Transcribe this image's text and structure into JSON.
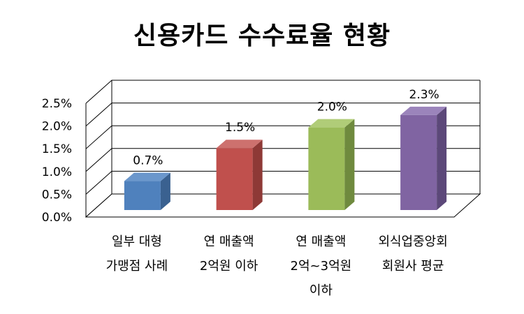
{
  "chart_data": {
    "type": "bar",
    "title": "신용카드 수수료율 현황",
    "categories": [
      [
        "일부 대형",
        "가맹점 사례"
      ],
      [
        "연 매출액",
        "2억원 이하"
      ],
      [
        "연 매출액",
        "2억~3억원",
        "이하"
      ],
      [
        "외식업중앙회",
        "회원사 평균"
      ]
    ],
    "values": [
      0.7,
      1.5,
      2.0,
      2.3
    ],
    "data_labels": [
      "0.7%",
      "1.5%",
      "2.0%",
      "2.3%"
    ],
    "yticks": [
      "0.0%",
      "0.5%",
      "1.0%",
      "1.5%",
      "2.0%",
      "2.5%"
    ],
    "ylim": [
      0,
      2.5
    ],
    "grid": true,
    "legend": "none",
    "colors": {
      "bars": [
        "#4F81BD",
        "#C0504D",
        "#9BBB59",
        "#8064A2"
      ],
      "bar_tops": [
        "#6B97CC",
        "#CD716E",
        "#B0CC78",
        "#9B84BB"
      ],
      "bar_sides": [
        "#3A6190",
        "#8E3936",
        "#6F8A3E",
        "#5C4879"
      ],
      "grid": "#000000"
    }
  }
}
